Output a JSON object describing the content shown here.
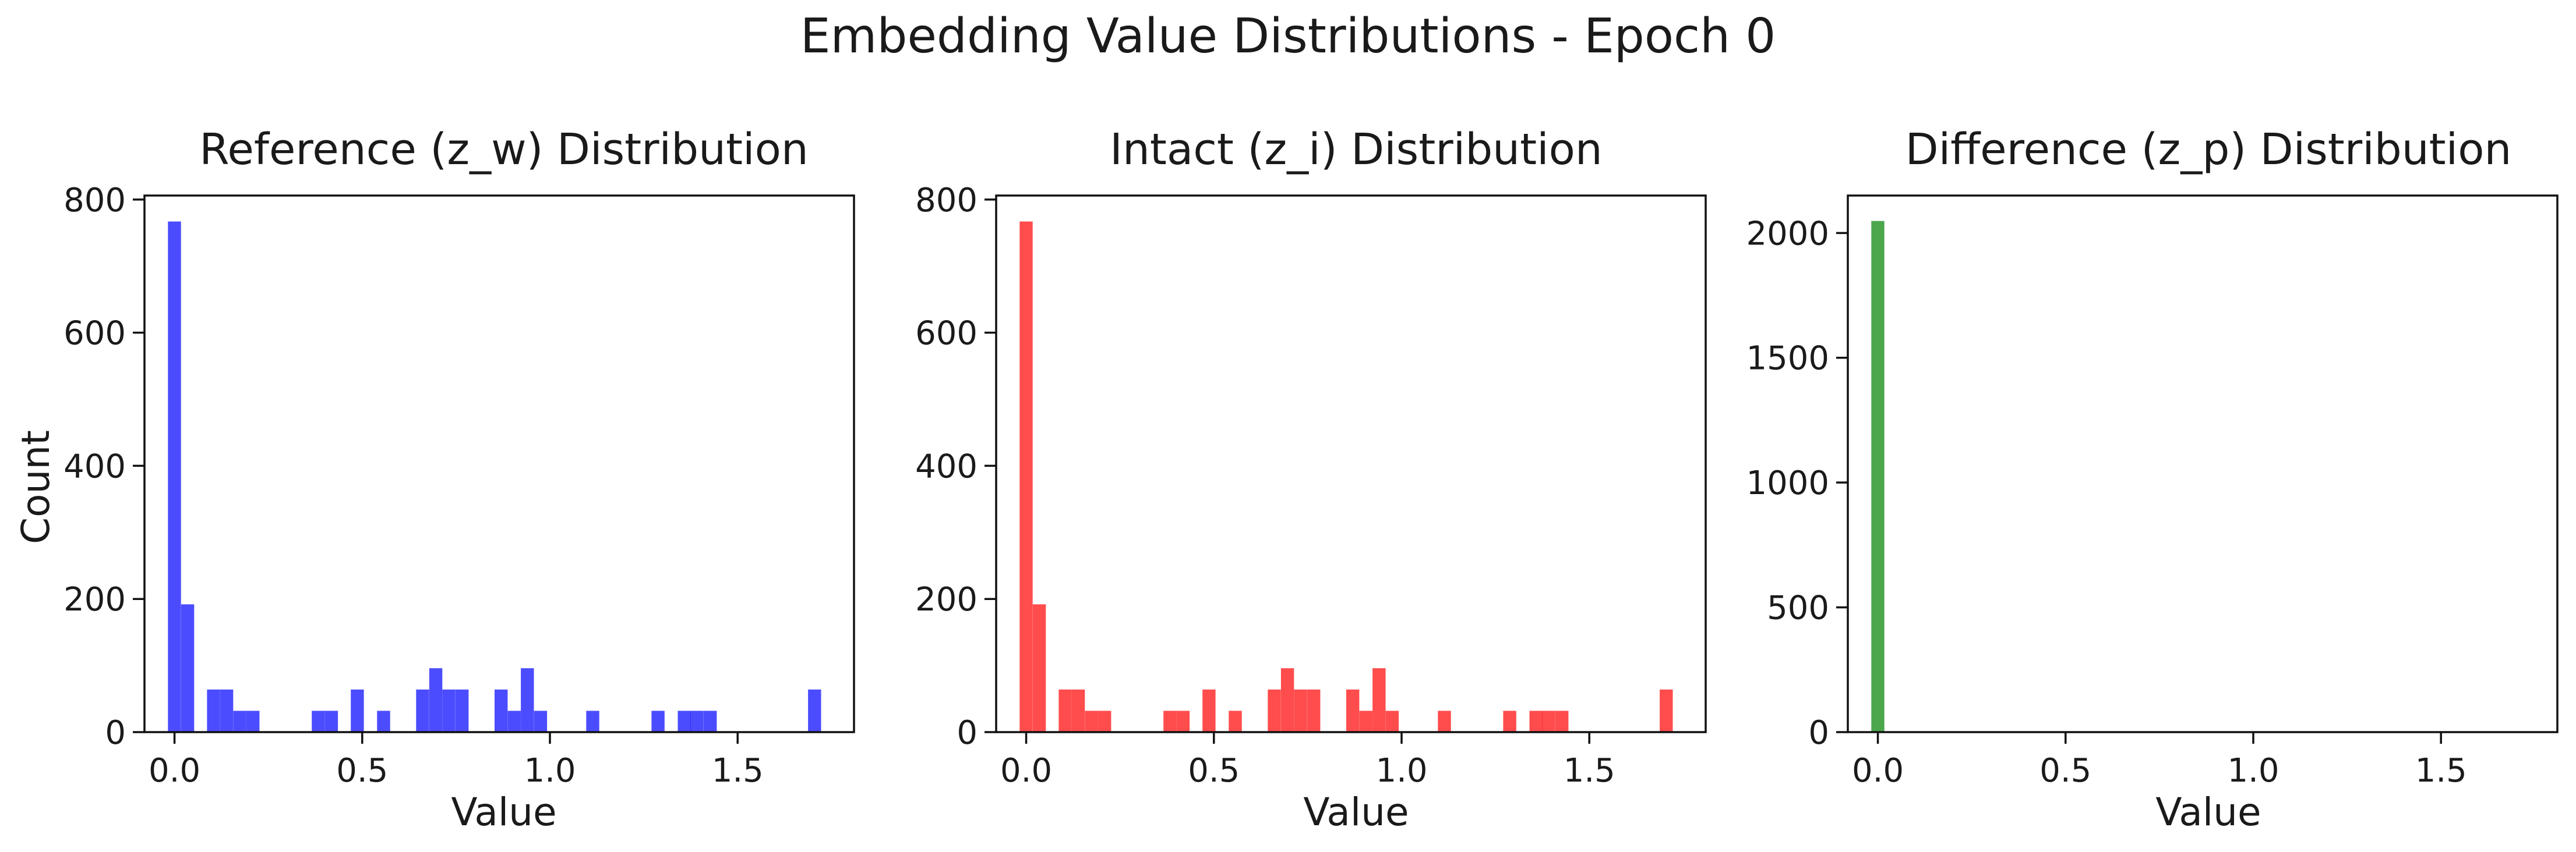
{
  "figure": {
    "title": "Embedding Value Distributions - Epoch 0"
  },
  "chart_data": [
    {
      "type": "bar",
      "title": "Reference (z_w) Distribution",
      "xlabel": "Value",
      "ylabel": "Count",
      "color": "#0000ff",
      "xlim": [
        -0.08,
        1.81
      ],
      "ylim": [
        0,
        806
      ],
      "xticks": [
        0.0,
        0.5,
        1.0,
        1.5
      ],
      "xtick_labels": [
        "0.0",
        "0.5",
        "1.0",
        "1.5"
      ],
      "yticks": [
        0,
        200,
        400,
        600,
        800
      ],
      "ytick_labels": [
        "0",
        "200",
        "400",
        "600",
        "800"
      ],
      "bin_width": 0.0348,
      "bins": [
        {
          "x": 0.0,
          "count": 767
        },
        {
          "x": 0.035,
          "count": 192
        },
        {
          "x": 0.104,
          "count": 64
        },
        {
          "x": 0.139,
          "count": 64
        },
        {
          "x": 0.174,
          "count": 32
        },
        {
          "x": 0.209,
          "count": 32
        },
        {
          "x": 0.383,
          "count": 32
        },
        {
          "x": 0.418,
          "count": 32
        },
        {
          "x": 0.487,
          "count": 64
        },
        {
          "x": 0.557,
          "count": 32
        },
        {
          "x": 0.661,
          "count": 64
        },
        {
          "x": 0.696,
          "count": 96
        },
        {
          "x": 0.731,
          "count": 64
        },
        {
          "x": 0.766,
          "count": 64
        },
        {
          "x": 0.87,
          "count": 64
        },
        {
          "x": 0.905,
          "count": 32
        },
        {
          "x": 0.94,
          "count": 96
        },
        {
          "x": 0.975,
          "count": 32
        },
        {
          "x": 1.114,
          "count": 32
        },
        {
          "x": 1.288,
          "count": 32
        },
        {
          "x": 1.358,
          "count": 32
        },
        {
          "x": 1.392,
          "count": 32
        },
        {
          "x": 1.427,
          "count": 32
        },
        {
          "x": 1.705,
          "count": 64
        }
      ]
    },
    {
      "type": "bar",
      "title": "Intact (z_i) Distribution",
      "xlabel": "Value",
      "ylabel": "",
      "color": "#ff0000",
      "xlim": [
        -0.08,
        1.81
      ],
      "ylim": [
        0,
        806
      ],
      "xticks": [
        0.0,
        0.5,
        1.0,
        1.5
      ],
      "xtick_labels": [
        "0.0",
        "0.5",
        "1.0",
        "1.5"
      ],
      "yticks": [
        0,
        200,
        400,
        600,
        800
      ],
      "ytick_labels": [
        "0",
        "200",
        "400",
        "600",
        "800"
      ],
      "bin_width": 0.0348,
      "bins": [
        {
          "x": 0.0,
          "count": 767
        },
        {
          "x": 0.035,
          "count": 192
        },
        {
          "x": 0.104,
          "count": 64
        },
        {
          "x": 0.139,
          "count": 64
        },
        {
          "x": 0.174,
          "count": 32
        },
        {
          "x": 0.209,
          "count": 32
        },
        {
          "x": 0.383,
          "count": 32
        },
        {
          "x": 0.418,
          "count": 32
        },
        {
          "x": 0.487,
          "count": 64
        },
        {
          "x": 0.557,
          "count": 32
        },
        {
          "x": 0.661,
          "count": 64
        },
        {
          "x": 0.696,
          "count": 96
        },
        {
          "x": 0.731,
          "count": 64
        },
        {
          "x": 0.766,
          "count": 64
        },
        {
          "x": 0.87,
          "count": 64
        },
        {
          "x": 0.905,
          "count": 32
        },
        {
          "x": 0.94,
          "count": 96
        },
        {
          "x": 0.975,
          "count": 32
        },
        {
          "x": 1.114,
          "count": 32
        },
        {
          "x": 1.288,
          "count": 32
        },
        {
          "x": 1.358,
          "count": 32
        },
        {
          "x": 1.392,
          "count": 32
        },
        {
          "x": 1.427,
          "count": 32
        },
        {
          "x": 1.705,
          "count": 64
        }
      ]
    },
    {
      "type": "bar",
      "title": "Difference (z_p) Distribution",
      "xlabel": "Value",
      "ylabel": "",
      "color": "#008000",
      "xlim": [
        -0.08,
        1.81
      ],
      "ylim": [
        0,
        2150
      ],
      "xticks": [
        0.0,
        0.5,
        1.0,
        1.5
      ],
      "xtick_labels": [
        "0.0",
        "0.5",
        "1.0",
        "1.5"
      ],
      "yticks": [
        0,
        500,
        1000,
        1500,
        2000
      ],
      "ytick_labels": [
        "0",
        "500",
        "1000",
        "1500",
        "2000"
      ],
      "bin_width": 0.0348,
      "bins": [
        {
          "x": 0.0,
          "count": 2048
        }
      ]
    }
  ]
}
